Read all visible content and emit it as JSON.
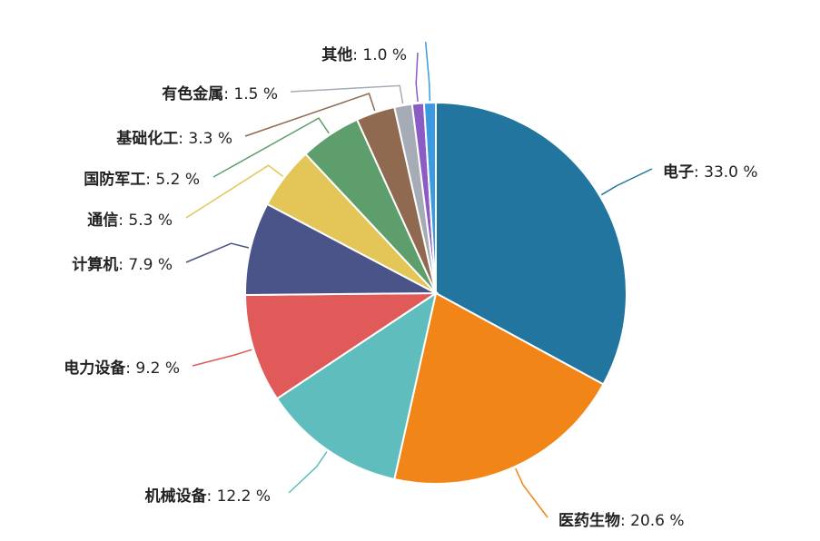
{
  "chart_data": {
    "type": "pie",
    "title": "",
    "legend": "none",
    "value_suffix": " %",
    "slices": [
      {
        "name": "电子",
        "value": 33.0,
        "color": "#21759e"
      },
      {
        "name": "医药生物",
        "value": 20.6,
        "color": "#f28517"
      },
      {
        "name": "机械设备",
        "value": 12.2,
        "color": "#5fbdbe"
      },
      {
        "name": "电力设备",
        "value": 9.2,
        "color": "#e15a5a"
      },
      {
        "name": "计算机",
        "value": 7.9,
        "color": "#4a5488"
      },
      {
        "name": "通信",
        "value": 5.3,
        "color": "#e3c657"
      },
      {
        "name": "国防军工",
        "value": 5.2,
        "color": "#5e9e6c"
      },
      {
        "name": "基础化工",
        "value": 3.3,
        "color": "#8f6a50"
      },
      {
        "name": "有色金属",
        "value": 1.5,
        "color": "#a5acb6"
      },
      {
        "name": "其他",
        "value": 1.0,
        "color": "#8a5cc4"
      },
      {
        "name": "",
        "value": 1.0,
        "color": "#3b9ae0"
      }
    ]
  }
}
